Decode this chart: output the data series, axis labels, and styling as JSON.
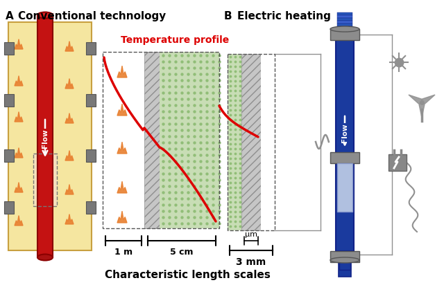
{
  "title_A": "A",
  "title_A_text": "Conventional technology",
  "title_B": "B",
  "title_B_text": "Electric heating",
  "subtitle": "Characteristic length scales",
  "temp_profile_label": "Temperature profile",
  "label_A_left": "1 m",
  "label_A_right": "5 cm",
  "label_B_um": "μm",
  "label_B_right": "3 mm",
  "bg_color": "#ffffff",
  "yellow_bg": "#f5e6a0",
  "tube_red": "#c41212",
  "tube_red_dark": "#8b0000",
  "tube_blue": "#1a3a9e",
  "tube_blue_mid": "#2755b8",
  "gray_flange": "#8c8c8c",
  "gray_hatch_fc": "#c8c8c8",
  "green_dot_bg": "#c8ddb5",
  "green_dot_fg": "#8aba70",
  "flame_color": "#e88030",
  "temp_curve_color": "#dd0000",
  "dashed_border": "#555555",
  "white_zone": "#ffffff",
  "light_blue_window": "#b0c0e0",
  "squiggle_color": "#909090",
  "connector_line": "#909090",
  "icon_color": "#909090"
}
